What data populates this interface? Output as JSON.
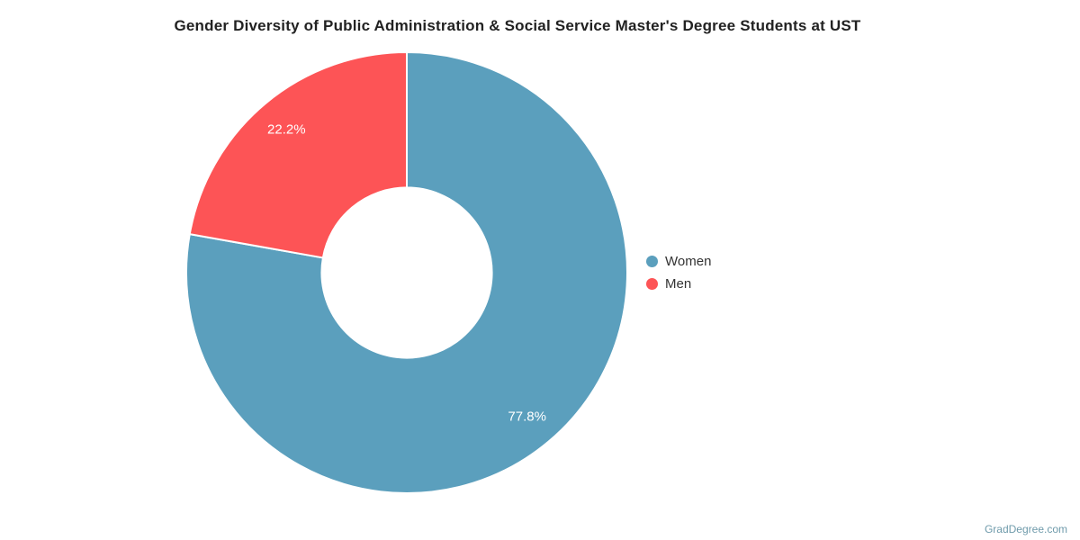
{
  "title": "Gender Diversity of Public Administration & Social Service Master's Degree Students at UST",
  "chart_data": {
    "type": "pie",
    "subtype": "donut",
    "title": "Gender Diversity of Public Administration & Social Service Master's Degree Students at UST",
    "categories": [
      "Women",
      "Men"
    ],
    "values": [
      77.8,
      22.2
    ],
    "value_labels": [
      "77.8%",
      "22.2%"
    ],
    "colors": [
      "#5b9fbd",
      "#fd5456"
    ],
    "start_angle_deg": 0,
    "direction": "clockwise",
    "inner_radius_ratio": 0.386,
    "label_radius_ratio": 0.85,
    "legend_position": "right"
  },
  "legend": {
    "items": [
      {
        "label": "Women",
        "color": "#5b9fbd"
      },
      {
        "label": "Men",
        "color": "#fd5456"
      }
    ]
  },
  "watermark": {
    "text": "GradDegree.com",
    "color": "#6f9bab"
  }
}
